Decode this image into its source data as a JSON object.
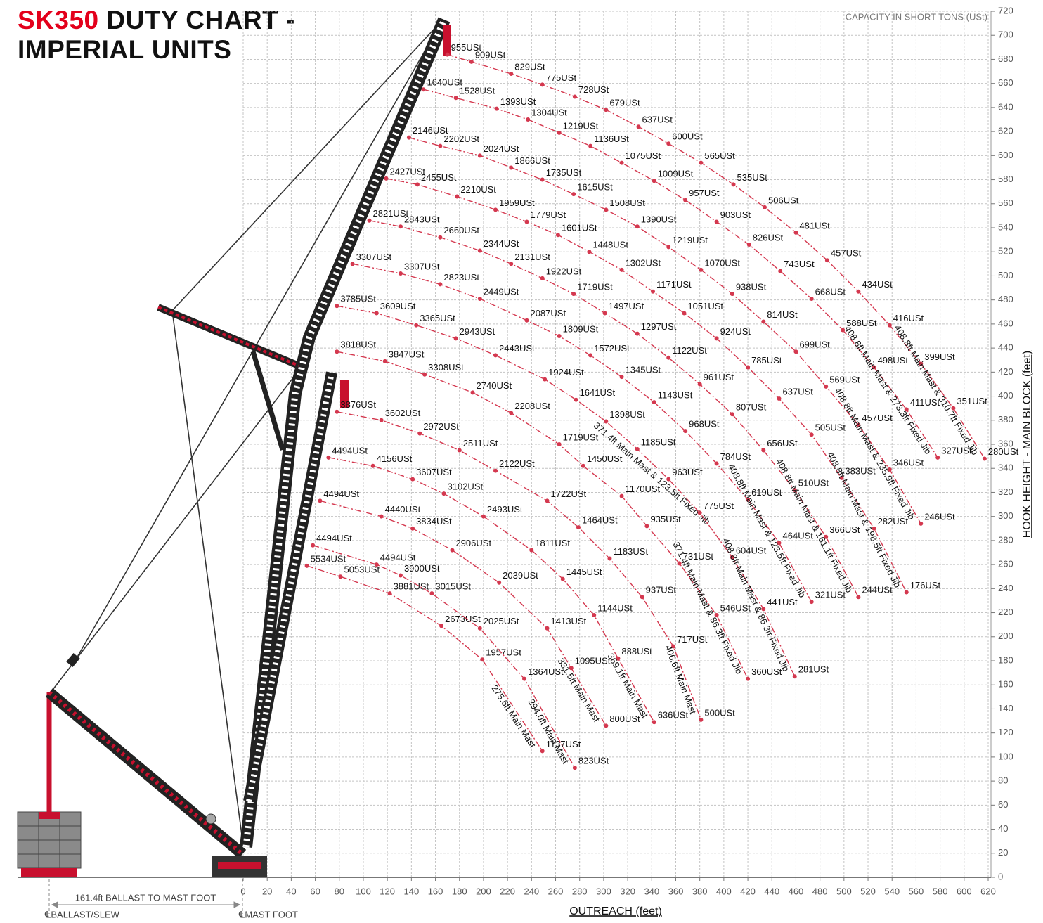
{
  "chart_data": {
    "type": "line",
    "title_brand": "SK350",
    "title_lines": [
      "DUTY CHART -",
      "IMPERIAL UNITS"
    ],
    "subtitle": "CAPACITY IN SHORT TONS (USt)",
    "x_label": "OUTREACH (feet)",
    "y_label": "HOOK HEIGHT - MAIN BLOCK (feet)",
    "dimension_label": "161.4ft BALLAST TO MAST FOOT",
    "ballast_label": "℄BALLAST/SLEW",
    "mast_foot_label": "℄MAST FOOT",
    "annotations": [
      "371.4ft Main Mast & 123.5ft Fixed Jib"
    ],
    "xlim": [
      0,
      620
    ],
    "ylim": [
      0,
      720
    ],
    "xticks": [
      0,
      20,
      40,
      60,
      80,
      100,
      120,
      140,
      160,
      180,
      200,
      220,
      240,
      260,
      280,
      300,
      320,
      340,
      360,
      380,
      400,
      420,
      440,
      460,
      480,
      500,
      520,
      540,
      560,
      580,
      600,
      620
    ],
    "yticks": [
      0,
      20,
      40,
      60,
      80,
      100,
      120,
      140,
      160,
      180,
      200,
      220,
      240,
      260,
      280,
      300,
      320,
      340,
      360,
      380,
      400,
      420,
      440,
      460,
      480,
      500,
      520,
      540,
      560,
      580,
      600,
      620,
      640,
      660,
      680,
      700,
      720
    ],
    "grid": true,
    "color": "#d4384f",
    "series": [
      {
        "name": "275.6ft Main Mast",
        "x": [
          53,
          81,
          122,
          165,
          199,
          249
        ],
        "values": [
          259,
          250,
          236,
          209,
          181,
          105
        ],
        "capacity_labels": [
          "5534USt",
          "5053USt",
          "3881USt",
          "2673USt",
          "1957USt",
          "1137USt"
        ]
      },
      {
        "name": "294.0ft Main Mast",
        "x": [
          58,
          111,
          131,
          157,
          197,
          234,
          276
        ],
        "values": [
          276,
          260,
          251,
          236,
          207,
          165,
          91
        ],
        "capacity_labels": [
          "4494USt",
          "4494USt",
          "3900USt",
          "3015USt",
          "2025USt",
          "1364USt",
          "823USt"
        ]
      },
      {
        "name": "331.5ft Main Mast",
        "x": [
          64,
          115,
          141,
          174,
          213,
          253,
          273,
          302
        ],
        "values": [
          313,
          300,
          290,
          272,
          245,
          207,
          174,
          126
        ],
        "capacity_labels": [
          "4494USt",
          "4440USt",
          "3834USt",
          "2906USt",
          "2039USt",
          "1413USt",
          "1095USt",
          "800USt"
        ]
      },
      {
        "name": "369.1ft Main Mast",
        "x": [
          71,
          108,
          141,
          167,
          200,
          240,
          266,
          292,
          312,
          342
        ],
        "values": [
          349,
          342,
          331,
          319,
          300,
          272,
          248,
          218,
          182,
          129
        ],
        "capacity_labels": [
          "4494USt",
          "4156USt",
          "3607USt",
          "3102USt",
          "2493USt",
          "1811USt",
          "1445USt",
          "1144USt",
          "888USt",
          "636USt"
        ]
      },
      {
        "name": "406.6ft Main Mast",
        "x": [
          78,
          115,
          147,
          180,
          210,
          253,
          279,
          305,
          332,
          358,
          381
        ],
        "values": [
          387,
          380,
          369,
          355,
          338,
          313,
          291,
          265,
          233,
          192,
          131
        ],
        "capacity_labels": [
          "3876USt",
          "3602USt",
          "2972USt",
          "2511USt",
          "2122USt",
          "1722USt",
          "1464USt",
          "1183USt",
          "937USt",
          "717USt",
          "500USt"
        ]
      },
      {
        "name": "371.4ft Main Mast & 86.3ft Fixed Jib",
        "x": [
          78,
          118,
          151,
          191,
          223,
          263,
          283,
          315,
          336,
          363,
          394,
          420
        ],
        "values": [
          437,
          429,
          418,
          403,
          386,
          360,
          342,
          317,
          292,
          261,
          218,
          165
        ],
        "capacity_labels": [
          "3818USt",
          "3847USt",
          "3308USt",
          "2740USt",
          "2208USt",
          "1719USt",
          "1450USt",
          "1170USt",
          "935USt",
          "731USt",
          "546USt",
          "360USt"
        ]
      },
      {
        "name": "408.8ft Main Mast & 86.3ft Fixed Jib",
        "x": [
          78,
          111,
          144,
          177,
          210,
          251,
          277,
          302,
          328,
          354,
          380,
          407,
          433,
          459
        ],
        "values": [
          475,
          469,
          459,
          448,
          434,
          414,
          397,
          379,
          356,
          331,
          303,
          266,
          223,
          167
        ],
        "capacity_labels": [
          "3785USt",
          "3609USt",
          "3365USt",
          "2943USt",
          "2443USt",
          "1924USt",
          "1641USt",
          "1398USt",
          "1185USt",
          "963USt",
          "775USt",
          "604USt",
          "441USt",
          "281USt"
        ]
      },
      {
        "name": "408.8ft Main Mast & 123.5ft Fixed Jib",
        "x": [
          91,
          131,
          164,
          197,
          236,
          263,
          289,
          315,
          342,
          368,
          394,
          420,
          446,
          473
        ],
        "values": [
          510,
          502,
          493,
          481,
          463,
          450,
          434,
          416,
          395,
          371,
          344,
          314,
          278,
          229
        ],
        "capacity_labels": [
          "3307USt",
          "3307USt",
          "2823USt",
          "2449USt",
          "2087USt",
          "1809USt",
          "1572USt",
          "1345USt",
          "1143USt",
          "968USt",
          "784USt",
          "619USt",
          "464USt",
          "321USt"
        ]
      },
      {
        "name": "408.8ft Main Mast & 161.1ft Fixed Jib",
        "x": [
          105,
          131,
          164,
          197,
          223,
          249,
          275,
          301,
          328,
          354,
          380,
          407,
          433,
          459,
          485,
          512
        ],
        "values": [
          546,
          541,
          532,
          521,
          510,
          498,
          485,
          469,
          452,
          432,
          410,
          385,
          355,
          322,
          283,
          233
        ],
        "capacity_labels": [
          "2821USt",
          "2843USt",
          "2660USt",
          "2344USt",
          "2131USt",
          "1922USt",
          "1719USt",
          "1497USt",
          "1297USt",
          "1122USt",
          "961USt",
          "807USt",
          "656USt",
          "510USt",
          "366USt",
          "244USt"
        ]
      },
      {
        "name": "408.8ft Main Mast & 198.5ft Fixed Jib",
        "x": [
          119,
          145,
          178,
          210,
          236,
          262,
          288,
          315,
          341,
          367,
          394,
          420,
          446,
          473,
          498,
          525,
          552
        ],
        "values": [
          581,
          576,
          566,
          555,
          545,
          534,
          520,
          505,
          487,
          469,
          448,
          424,
          398,
          368,
          332,
          290,
          237
        ],
        "capacity_labels": [
          "2427USt",
          "2455USt",
          "2210USt",
          "1959USt",
          "1779USt",
          "1601USt",
          "1448USt",
          "1302USt",
          "1171USt",
          "1051USt",
          "924USt",
          "785USt",
          "637USt",
          "505USt",
          "383USt",
          "282USt",
          "176USt"
        ]
      },
      {
        "name": "408.8ft Main Mast & 235.9ft Fixed Jib",
        "x": [
          138,
          164,
          197,
          223,
          249,
          275,
          302,
          328,
          354,
          381,
          407,
          433,
          460,
          485,
          512,
          538,
          564
        ],
        "values": [
          615,
          608,
          600,
          590,
          580,
          568,
          555,
          541,
          524,
          505,
          485,
          462,
          437,
          408,
          376,
          339,
          294
        ],
        "capacity_labels": [
          "2146USt",
          "2202USt",
          "2024USt",
          "1866USt",
          "1735USt",
          "1615USt",
          "1508USt",
          "1390USt",
          "1219USt",
          "1070USt",
          "938USt",
          "814USt",
          "699USt",
          "569USt",
          "457USt",
          "346USt",
          "246USt"
        ]
      },
      {
        "name": "408.8ft Main Mast & 273.3ft Fixed Jib",
        "x": [
          150,
          177,
          211,
          237,
          263,
          289,
          315,
          342,
          368,
          394,
          421,
          447,
          473,
          499,
          525,
          552,
          578
        ],
        "values": [
          655,
          648,
          639,
          630,
          619,
          608,
          594,
          579,
          563,
          545,
          526,
          504,
          481,
          455,
          424,
          389,
          349
        ],
        "capacity_labels": [
          "1640USt",
          "1528USt",
          "1393USt",
          "1304USt",
          "1219USt",
          "1136USt",
          "1075USt",
          "1009USt",
          "957USt",
          "903USt",
          "826USt",
          "743USt",
          "668USt",
          "588USt",
          "498USt",
          "411USt",
          "327USt"
        ]
      },
      {
        "name": "408.8ft Main Mast & 310.7ft Fixed Jib",
        "x": [
          170,
          190,
          223,
          249,
          276,
          302,
          329,
          354,
          381,
          408,
          434,
          460,
          486,
          512,
          538,
          564,
          591,
          617
        ],
        "values": [
          684,
          678,
          668,
          659,
          649,
          638,
          624,
          610,
          594,
          576,
          557,
          536,
          513,
          487,
          459,
          427,
          390,
          348
        ],
        "capacity_labels": [
          "955USt",
          "909USt",
          "829USt",
          "775USt",
          "728USt",
          "679USt",
          "637USt",
          "600USt",
          "565USt",
          "535USt",
          "506USt",
          "481USt",
          "457USt",
          "434USt",
          "416USt",
          "399USt",
          "351USt",
          "280USt"
        ]
      }
    ]
  }
}
